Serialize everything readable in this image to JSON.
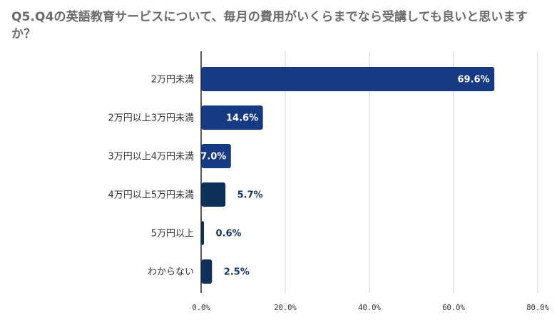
{
  "chart_data": {
    "type": "bar",
    "orientation": "horizontal",
    "title": "Q5.Q4の英語教育サービスについて、毎月の費用がいくらまでなら受講しても良いと思いますか？",
    "xlabel": "",
    "ylabel": "",
    "categories": [
      "2万円未満",
      "2万円以上3万円未満",
      "3万円以上4万円未満",
      "4万円以上5万円未満",
      "5万円以上",
      "わからない"
    ],
    "values": [
      69.6,
      14.6,
      7.0,
      5.7,
      0.6,
      2.5
    ],
    "value_labels": [
      "69.6%",
      "14.6%",
      "7.0%",
      "5.7%",
      "0.6%",
      "2.5%"
    ],
    "xlim": [
      0,
      80
    ],
    "x_ticks": [
      0,
      20,
      40,
      60,
      80
    ],
    "x_tick_labels": [
      "0.0%",
      "20.0%",
      "40.0%",
      "60.0%",
      "80.0%"
    ],
    "grid": "vertical",
    "legend": "none",
    "colors": {
      "primary_bar": "#163a83",
      "secondary_bar": "#0d3158",
      "inside_label": "#ffffff",
      "outside_label": "#16355f",
      "grid": "#d3d3d3",
      "axis": "#222222"
    },
    "bar_colors": [
      "#163a83",
      "#163a83",
      "#163a83",
      "#0d3158",
      "#0d3158",
      "#0d3158"
    ],
    "label_positions": [
      "inside",
      "inside",
      "inside",
      "outside",
      "outside",
      "outside"
    ]
  }
}
